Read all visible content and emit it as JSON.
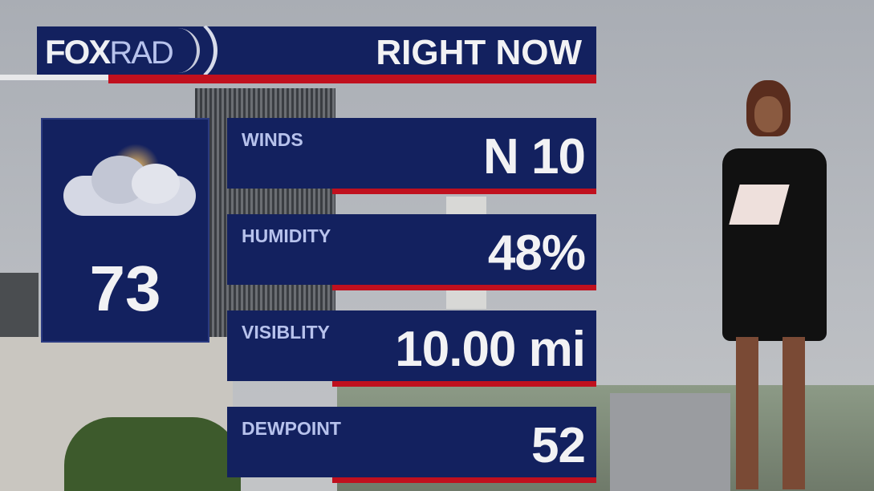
{
  "header": {
    "logo_fox": "FOX",
    "logo_rad": "RAD",
    "title": "RIGHT NOW"
  },
  "current": {
    "icon": "partly-cloudy-icon",
    "temperature": "73"
  },
  "conditions": [
    {
      "label": "WINDS",
      "value": "N 10"
    },
    {
      "label": "HUMIDITY",
      "value": "48%"
    },
    {
      "label": "VISIBLITY",
      "value": "10.00 mi"
    },
    {
      "label": "DEWPOINT",
      "value": "52"
    }
  ],
  "colors": {
    "navy": "#13215f",
    "red": "#c0101e",
    "label": "#b7c2ec"
  }
}
